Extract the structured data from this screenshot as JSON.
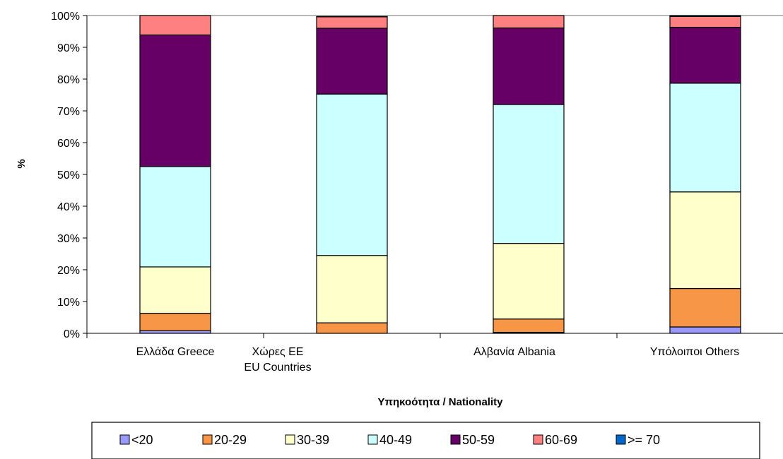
{
  "chart_data": {
    "type": "bar",
    "stacked": true,
    "percent_stacked": true,
    "categories": [
      [
        "Ελλάδα Greece"
      ],
      [
        "Χώρες ΕΕ",
        "EU Countries"
      ],
      [
        "Αλβανία Albania"
      ],
      [
        "Υπόλοιποι Others"
      ]
    ],
    "series": [
      {
        "name": "<20",
        "color": "#9999ff",
        "values": [
          0.8,
          0.0,
          0.3,
          2.0
        ]
      },
      {
        "name": "20-29",
        "color": "#f79646",
        "values": [
          5.5,
          3.3,
          4.2,
          12.1
        ]
      },
      {
        "name": "30-39",
        "color": "#ffffcc",
        "values": [
          14.6,
          21.2,
          23.8,
          30.4
        ]
      },
      {
        "name": "40-49",
        "color": "#ccffff",
        "values": [
          31.6,
          50.8,
          43.7,
          34.2
        ]
      },
      {
        "name": "50-59",
        "color": "#660066",
        "values": [
          41.4,
          20.7,
          24.1,
          17.6
        ]
      },
      {
        "name": "60-69",
        "color": "#ff8080",
        "values": [
          6.1,
          3.6,
          3.9,
          3.4
        ]
      },
      {
        "name": ">= 70",
        "color": "#0066cc",
        "values": [
          0.0,
          0.1,
          0.0,
          0.3
        ]
      }
    ],
    "ylim": [
      0,
      100
    ],
    "yticks": [
      "0%",
      "10%",
      "20%",
      "30%",
      "40%",
      "50%",
      "60%",
      "70%",
      "80%",
      "90%",
      "100%"
    ],
    "ylabel": "%",
    "xlabel": "Υπηκοότητα / Nationality",
    "legend_position": "bottom",
    "grid": false
  }
}
